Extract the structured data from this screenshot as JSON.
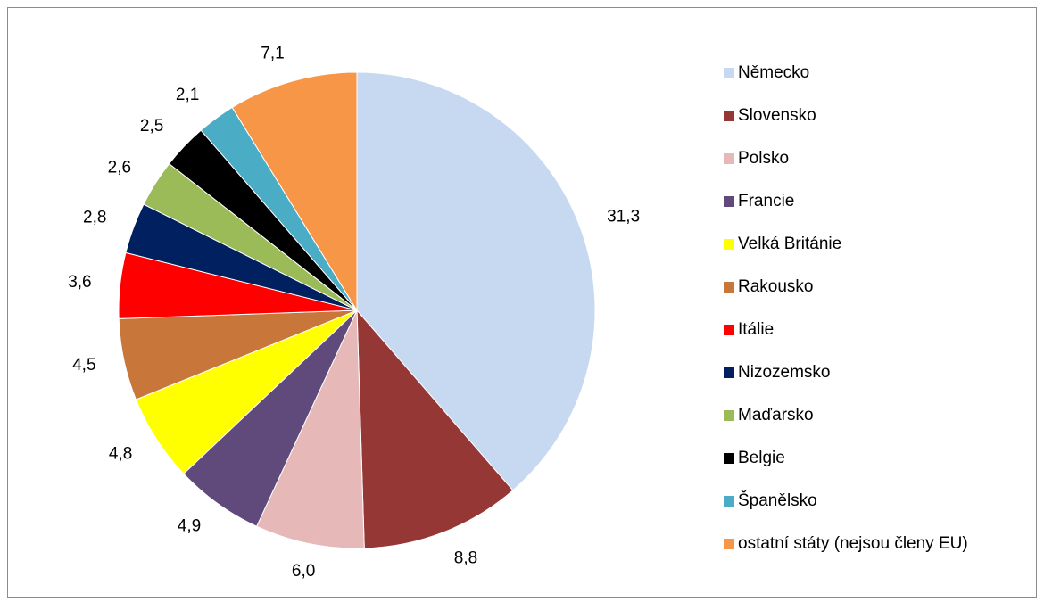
{
  "chart_data": {
    "type": "pie",
    "categories": [
      "Německo",
      "Slovensko",
      "Polsko",
      "Francie",
      "Velká Británie",
      "Rakousko",
      "Itálie",
      "Nizozemsko",
      "Maďarsko",
      "Belgie",
      "Španělsko",
      "ostatní státy (nejsou členy EU)"
    ],
    "values": [
      31.3,
      8.8,
      6.0,
      4.9,
      4.8,
      4.5,
      3.6,
      2.8,
      2.6,
      2.5,
      2.1,
      7.1
    ],
    "value_labels": [
      "31,3",
      "8,8",
      "6,0",
      "4,9",
      "4,8",
      "4,5",
      "3,6",
      "2,8",
      "2,6",
      "2,5",
      "2,1",
      "7,1"
    ],
    "colors": [
      "#c6d9f1",
      "#953735",
      "#e6b9b8",
      "#604a7b",
      "#ffff00",
      "#c8763a",
      "#ff0000",
      "#002060",
      "#9bbb59",
      "#000000",
      "#4bacc6",
      "#f79646"
    ],
    "legend": "right"
  }
}
